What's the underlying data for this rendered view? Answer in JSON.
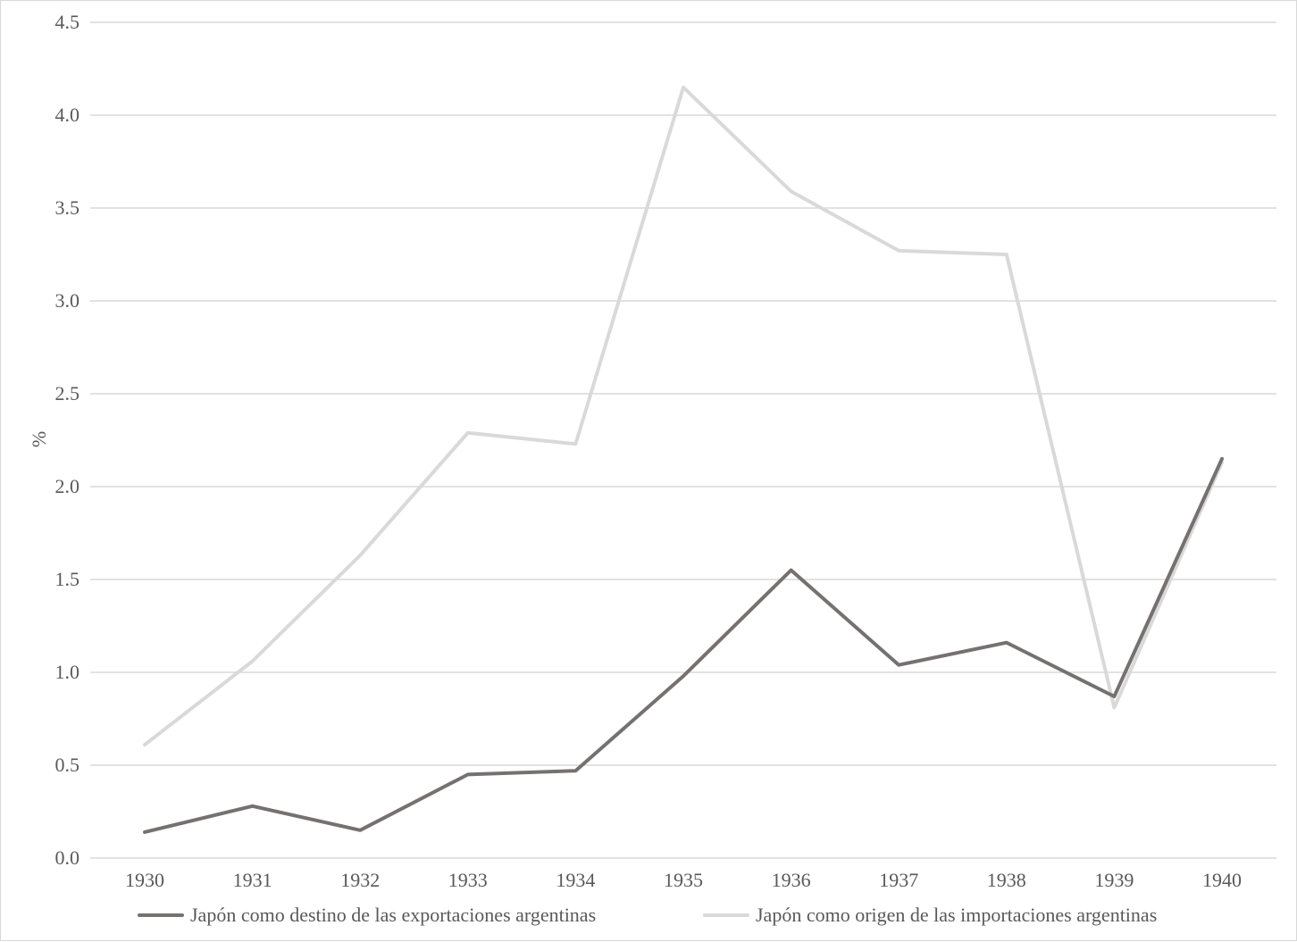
{
  "chart_data": {
    "type": "line",
    "title": "",
    "xlabel": "",
    "ylabel": "%",
    "categories": [
      "1930",
      "1931",
      "1932",
      "1933",
      "1934",
      "1935",
      "1936",
      "1937",
      "1938",
      "1939",
      "1940"
    ],
    "ylim": [
      0,
      4.5
    ],
    "yticks": [
      "0.0",
      "0.5",
      "1.0",
      "1.5",
      "2.0",
      "2.5",
      "3.0",
      "3.5",
      "4.0",
      "4.5"
    ],
    "grid": true,
    "legend_position": "bottom",
    "series": [
      {
        "name": "Japón como destino de las exportaciones argentinas",
        "color": "#767171",
        "values": [
          0.14,
          0.28,
          0.15,
          0.45,
          0.47,
          0.98,
          1.55,
          1.04,
          1.16,
          0.87,
          2.15
        ]
      },
      {
        "name": "Japón como origen de las importaciones argentinas",
        "color": "#d9d9d9",
        "values": [
          0.61,
          1.06,
          1.63,
          2.29,
          2.23,
          4.15,
          3.59,
          3.27,
          3.25,
          0.81,
          2.13
        ]
      }
    ]
  }
}
